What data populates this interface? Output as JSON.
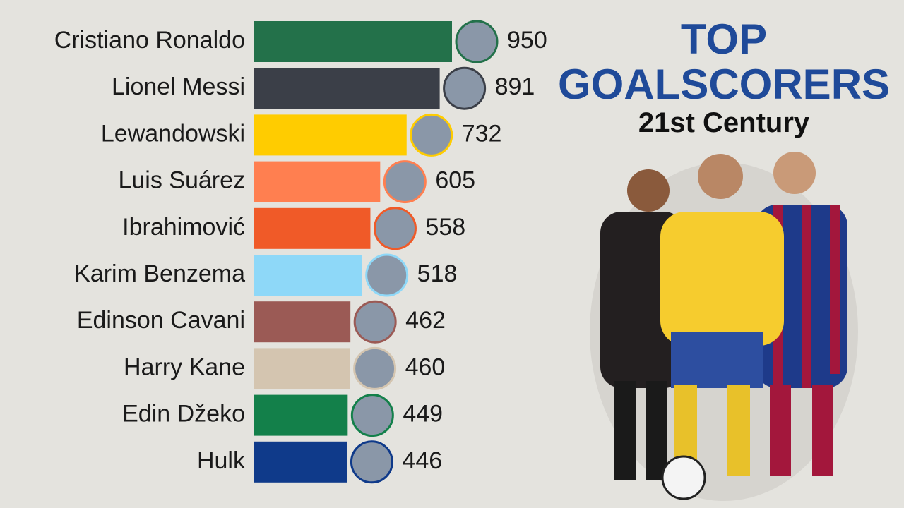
{
  "chart_data": {
    "type": "barh",
    "title": "TOP GOALSCORERS",
    "subtitle": "21st Century",
    "categories": [
      "Cristiano Ronaldo",
      "Lionel Messi",
      "Lewandowski",
      "Luis Suárez",
      "Ibrahimović",
      "Karim Benzema",
      "Edinson Cavani",
      "Harry Kane",
      "Edin Džeko",
      "Hulk"
    ],
    "values": [
      950,
      891,
      732,
      605,
      558,
      518,
      462,
      460,
      449,
      446
    ],
    "colors": [
      "#23714a",
      "#3b3f48",
      "#ffcc00",
      "#ff7f50",
      "#f05a28",
      "#8ed8f8",
      "#9b5a55",
      "#d4c5b0",
      "#13804a",
      "#0f3a8a"
    ]
  }
}
